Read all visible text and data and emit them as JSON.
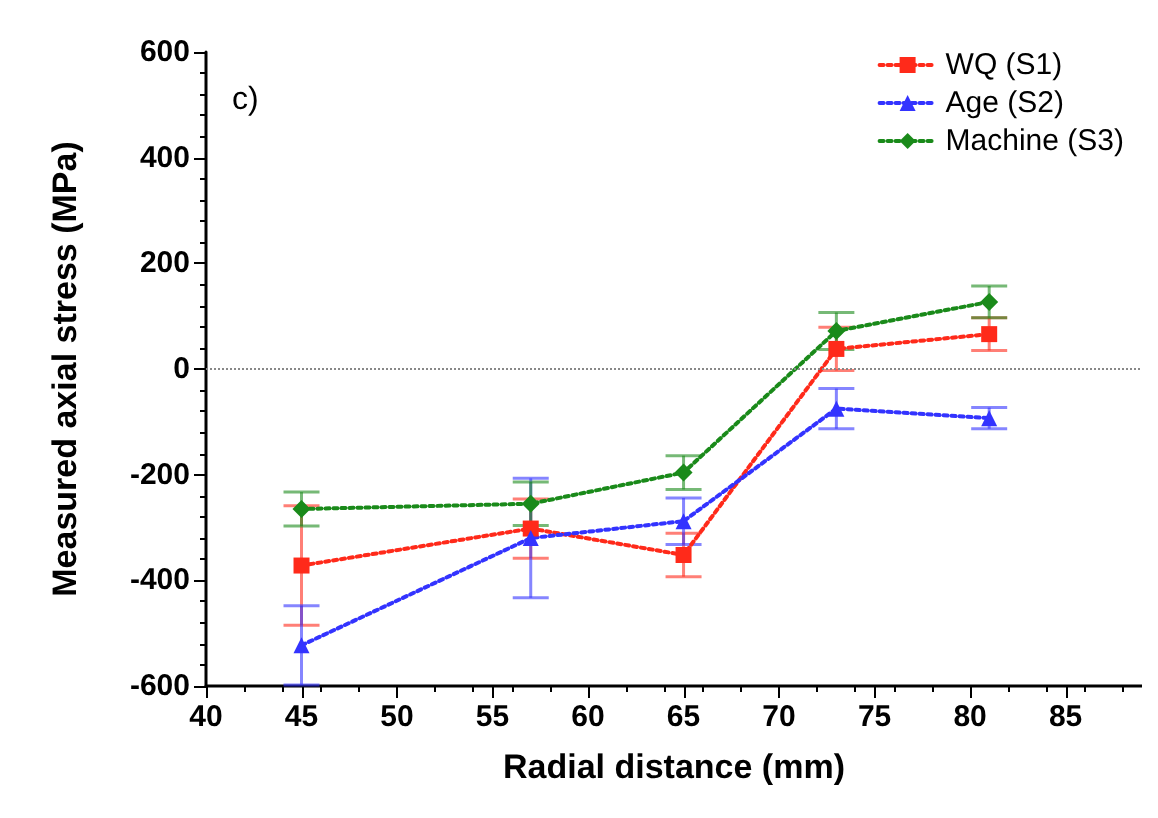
{
  "chart_data": {
    "type": "line",
    "xlabel": "Radial distance (mm)",
    "ylabel": "Measured axial stress (MPa)",
    "annotations": [
      "c)"
    ],
    "x": [
      45,
      57,
      65,
      73,
      81
    ],
    "series": [
      {
        "name": "WQ (S1)",
        "color": "#ff2a1a",
        "marker": "square",
        "values": [
          -372,
          -302,
          -352,
          38,
          66
        ],
        "errors": [
          113,
          56,
          41,
          41,
          31
        ]
      },
      {
        "name": "Age (S2)",
        "color": "#3333ff",
        "marker": "triangle",
        "values": [
          -523,
          -320,
          -288,
          -75,
          -93
        ],
        "errors": [
          75,
          113,
          44,
          38,
          20
        ]
      },
      {
        "name": "Machine (S3)",
        "color": "#1a8a1a",
        "marker": "diamond",
        "values": [
          -265,
          -255,
          -196,
          72,
          127
        ],
        "errors": [
          32,
          41,
          32,
          35,
          30
        ]
      }
    ],
    "line_style": "dotted",
    "xlim": [
      40,
      89
    ],
    "xticks": [
      40,
      45,
      50,
      55,
      60,
      65,
      70,
      75,
      80,
      85
    ],
    "ylim": [
      -600,
      600
    ],
    "yticks": [
      -600,
      -400,
      -200,
      0,
      200,
      400,
      600
    ],
    "ref_lines": [
      {
        "axis": "y",
        "value": 0,
        "color": "#888888",
        "line_style": "dotted"
      }
    ],
    "legend": "top right",
    "grid": false
  }
}
